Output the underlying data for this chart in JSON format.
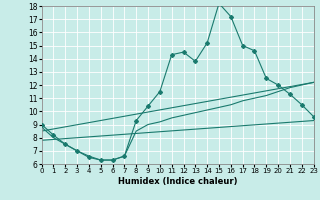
{
  "xlabel": "Humidex (Indice chaleur)",
  "bg_color": "#c8ece8",
  "grid_color": "#ffffff",
  "line_color": "#1a7a6e",
  "xlim": [
    0,
    23
  ],
  "ylim": [
    6,
    18
  ],
  "xticks": [
    0,
    1,
    2,
    3,
    4,
    5,
    6,
    7,
    8,
    9,
    10,
    11,
    12,
    13,
    14,
    15,
    16,
    17,
    18,
    19,
    20,
    21,
    22,
    23
  ],
  "yticks": [
    6,
    7,
    8,
    9,
    10,
    11,
    12,
    13,
    14,
    15,
    16,
    17,
    18
  ],
  "series1_x": [
    0,
    1,
    2,
    3,
    4,
    5,
    6,
    7,
    8,
    9,
    10,
    11,
    12,
    13,
    14,
    15,
    16,
    17,
    18,
    19,
    20,
    21,
    22,
    23
  ],
  "series1_y": [
    9.0,
    8.2,
    7.5,
    7.0,
    6.5,
    6.3,
    6.3,
    6.6,
    9.3,
    10.4,
    11.5,
    14.3,
    14.5,
    13.8,
    15.2,
    18.2,
    17.2,
    15.0,
    14.6,
    12.5,
    12.0,
    11.3,
    10.5,
    9.6
  ],
  "series2_x": [
    0,
    1,
    2,
    3,
    4,
    5,
    6,
    7,
    8,
    9,
    10,
    11,
    12,
    13,
    14,
    15,
    16,
    17,
    18,
    19,
    20,
    21,
    22,
    23
  ],
  "series2_y": [
    8.8,
    8.0,
    7.5,
    7.0,
    6.6,
    6.3,
    6.3,
    6.6,
    8.5,
    9.0,
    9.2,
    9.5,
    9.7,
    9.9,
    10.1,
    10.3,
    10.5,
    10.8,
    11.0,
    11.2,
    11.5,
    11.8,
    12.0,
    12.2
  ],
  "series3_x": [
    0,
    23
  ],
  "series3_y": [
    7.8,
    9.3
  ],
  "series4_x": [
    0,
    23
  ],
  "series4_y": [
    8.5,
    12.2
  ]
}
